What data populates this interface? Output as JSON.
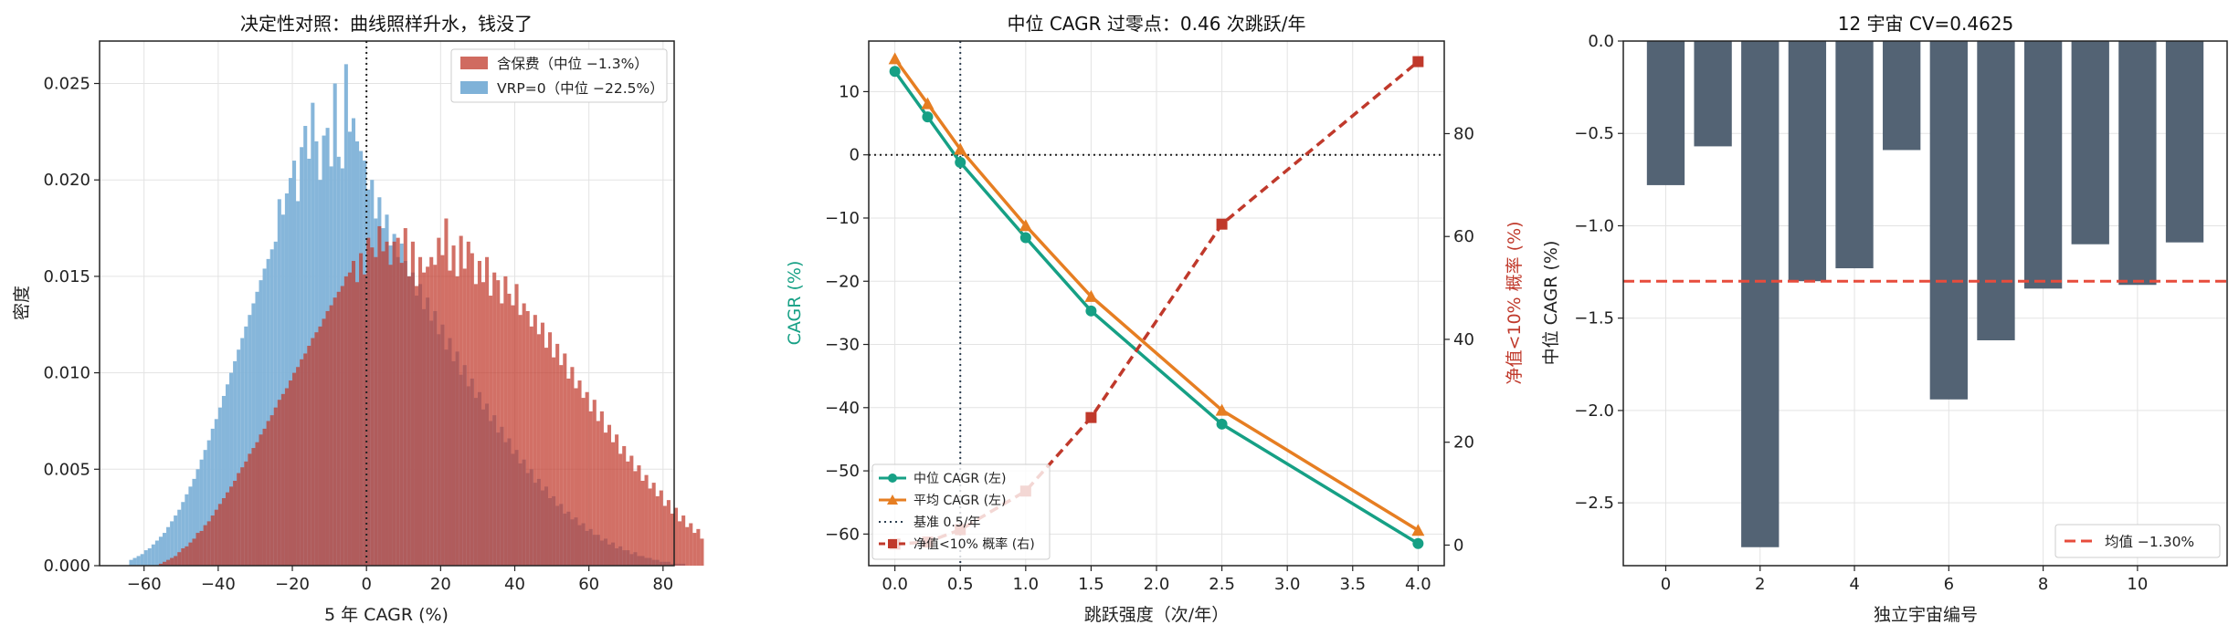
{
  "chart_data": [
    {
      "type": "histogram",
      "title": "决定性对照：曲线照样升水，钱没了",
      "xlabel": "5 年 CAGR (%)",
      "ylabel": "密度",
      "xlim": [
        -72,
        83
      ],
      "ylim": [
        0,
        0.0272
      ],
      "xticks": [
        "−60",
        "−40",
        "−20",
        "0",
        "20",
        "40",
        "60",
        "80"
      ],
      "yticks": [
        "0.000",
        "0.005",
        "0.010",
        "0.015",
        "0.020",
        "0.025"
      ],
      "grid": true,
      "legend_position": "top-right",
      "reference_line_x": 0,
      "bin_start": -64,
      "bin_width": 1,
      "series": [
        {
          "name": "含保费（中位 −1.3%）",
          "color": "#c0392b",
          "values": [
            0.0,
            0.0,
            0.0,
            0.0,
            0.0,
            0.0,
            0.0,
            0.0,
            0.0001,
            0.0002,
            0.0003,
            0.0004,
            0.0005,
            0.0007,
            0.0009,
            0.001,
            0.0012,
            0.0014,
            0.0017,
            0.0018,
            0.0021,
            0.0023,
            0.0026,
            0.0029,
            0.0032,
            0.0035,
            0.0038,
            0.0041,
            0.0044,
            0.0048,
            0.0051,
            0.0054,
            0.0058,
            0.0061,
            0.0064,
            0.0068,
            0.0071,
            0.0075,
            0.0078,
            0.0082,
            0.0086,
            0.0089,
            0.0092,
            0.0096,
            0.01,
            0.0103,
            0.0107,
            0.011,
            0.0114,
            0.0118,
            0.0121,
            0.0124,
            0.0128,
            0.0132,
            0.0135,
            0.0139,
            0.0142,
            0.0145,
            0.015,
            0.0152,
            0.0158,
            0.0147,
            0.0162,
            0.0151,
            0.017,
            0.0165,
            0.016,
            0.0176,
            0.0163,
            0.0168,
            0.0156,
            0.0168,
            0.017,
            0.0157,
            0.0175,
            0.015,
            0.0168,
            0.0145,
            0.016,
            0.0152,
            0.0155,
            0.016,
            0.0156,
            0.017,
            0.0161,
            0.018,
            0.0153,
            0.0166,
            0.015,
            0.0171,
            0.0154,
            0.0168,
            0.0162,
            0.0146,
            0.0158,
            0.0147,
            0.016,
            0.014,
            0.0152,
            0.0148,
            0.0136,
            0.015,
            0.0141,
            0.0135,
            0.0146,
            0.013,
            0.0136,
            0.0132,
            0.0124,
            0.013,
            0.012,
            0.0126,
            0.0113,
            0.0121,
            0.0108,
            0.0115,
            0.0104,
            0.011,
            0.0097,
            0.0103,
            0.0092,
            0.0096,
            0.0087,
            0.009,
            0.008,
            0.0086,
            0.0075,
            0.008,
            0.0069,
            0.0073,
            0.0064,
            0.0068,
            0.0058,
            0.0062,
            0.0054,
            0.0057,
            0.0049,
            0.0052,
            0.0044,
            0.0047,
            0.004,
            0.0043,
            0.0036,
            0.0039,
            0.0031,
            0.0034,
            0.0027,
            0.003,
            0.0023,
            0.0026,
            0.002,
            0.0022,
            0.0017,
            0.0019,
            0.0014
          ]
        },
        {
          "name": "VRP=0（中位 −22.5%）",
          "color": "#7fb2d8",
          "values": [
            0.0003,
            0.0004,
            0.0005,
            0.0006,
            0.0008,
            0.0009,
            0.0011,
            0.0013,
            0.0015,
            0.0017,
            0.002,
            0.0023,
            0.0026,
            0.0029,
            0.0033,
            0.0037,
            0.0041,
            0.0045,
            0.005,
            0.0055,
            0.006,
            0.0065,
            0.0071,
            0.0076,
            0.0082,
            0.0088,
            0.0094,
            0.01,
            0.0106,
            0.0112,
            0.0118,
            0.0124,
            0.013,
            0.0136,
            0.0142,
            0.0148,
            0.0154,
            0.0159,
            0.0164,
            0.0168,
            0.019,
            0.0182,
            0.0193,
            0.0201,
            0.021,
            0.0189,
            0.0217,
            0.0228,
            0.0211,
            0.024,
            0.022,
            0.02,
            0.0223,
            0.0227,
            0.0207,
            0.025,
            0.0212,
            0.0206,
            0.026,
            0.0225,
            0.0232,
            0.022,
            0.0215,
            0.021,
            0.0195,
            0.02,
            0.018,
            0.0191,
            0.0175,
            0.0182,
            0.0166,
            0.0172,
            0.016,
            0.0167,
            0.0158,
            0.015,
            0.0152,
            0.014,
            0.0146,
            0.0133,
            0.0139,
            0.0127,
            0.0132,
            0.012,
            0.0125,
            0.0112,
            0.0118,
            0.0106,
            0.0111,
            0.0099,
            0.0104,
            0.0093,
            0.0097,
            0.0087,
            0.009,
            0.0081,
            0.0084,
            0.0075,
            0.0078,
            0.0069,
            0.0072,
            0.0064,
            0.0066,
            0.0058,
            0.006,
            0.0053,
            0.0055,
            0.0048,
            0.005,
            0.0043,
            0.0045,
            0.0039,
            0.0041,
            0.0035,
            0.0036,
            0.0031,
            0.0032,
            0.0027,
            0.0028,
            0.0024,
            0.0025,
            0.0021,
            0.0022,
            0.0018,
            0.0019,
            0.0016,
            0.0016,
            0.0013,
            0.0014,
            0.0011,
            0.0012,
            0.0009,
            0.001,
            0.0008,
            0.0008,
            0.0006,
            0.0007,
            0.0005,
            0.0005,
            0.0004,
            0.0004,
            0.0003,
            0.0003,
            0.0002,
            0.0002,
            0.0002,
            0.0001,
            0.0001,
            0.0001,
            0.0001,
            0.0,
            0.0,
            0.0,
            0.0
          ]
        }
      ]
    },
    {
      "type": "line",
      "title": "中位 CAGR 过零点：0.46 次跳跃/年",
      "xlabel": "跳跃强度（次/年）",
      "ylabel": "CAGR (%)",
      "ylabel_right": "净值<10% 概率 (%)",
      "x": [
        0.0,
        0.25,
        0.5,
        1.0,
        1.5,
        2.5,
        4.0
      ],
      "xlim": [
        -0.2,
        4.2
      ],
      "ylim": [
        -65,
        18
      ],
      "ylim_right": [
        -4,
        98
      ],
      "xticks": [
        "0.0",
        "0.5",
        "1.0",
        "1.5",
        "2.0",
        "2.5",
        "3.0",
        "3.5",
        "4.0"
      ],
      "yticks": [
        "10",
        "0",
        "−10",
        "−20",
        "−30",
        "−40",
        "−50",
        "−60"
      ],
      "yticks_right": [
        "0",
        "20",
        "40",
        "60",
        "80"
      ],
      "grid": true,
      "legend_position": "bottom-left",
      "reference_line_x": 0.5,
      "reference_line_y": 0,
      "series": [
        {
          "name": "中位 CAGR (左)",
          "axis": "left",
          "color": "#16a085",
          "marker": "circle",
          "values": [
            13.2,
            6.0,
            -1.2,
            -13.1,
            -24.7,
            -42.6,
            -61.5
          ]
        },
        {
          "name": "平均 CAGR (左)",
          "axis": "left",
          "color": "#e67e22",
          "marker": "triangle",
          "values": [
            15.2,
            8.1,
            0.9,
            -11.2,
            -22.4,
            -40.4,
            -59.4
          ]
        },
        {
          "name": "基准 0.5/年",
          "style": "dotted",
          "color": "#2c3e50"
        },
        {
          "name": "净值<10% 概率 (右)",
          "axis": "right",
          "color": "#c0392b",
          "marker": "square",
          "style": "dashed",
          "values": [
            0.2,
            0.6,
            3.0,
            10.5,
            24.8,
            62.4,
            94.0
          ]
        }
      ]
    },
    {
      "type": "bar",
      "title": "12 宇宙 CV=0.4625",
      "xlabel": "独立宇宙编号",
      "ylabel": "中位 CAGR (%)",
      "categories": [
        0,
        1,
        2,
        3,
        4,
        5,
        6,
        7,
        8,
        9,
        10,
        11
      ],
      "values": [
        -0.78,
        -0.57,
        -2.74,
        -1.3,
        -1.23,
        -0.59,
        -1.94,
        -1.62,
        -1.34,
        -1.1,
        -1.32,
        -1.09
      ],
      "xticks": [
        "0",
        "2",
        "4",
        "6",
        "8",
        "10"
      ],
      "yticks": [
        "0.0",
        "−0.5",
        "−1.0",
        "−1.5",
        "−2.0",
        "−2.5"
      ],
      "ylim": [
        -2.84,
        0
      ],
      "mean_line": -1.3,
      "mean_label": "均值 −1.30%",
      "bar_color": "#536374",
      "mean_color": "#e74c3c",
      "grid": true,
      "legend_position": "bottom-right"
    }
  ]
}
